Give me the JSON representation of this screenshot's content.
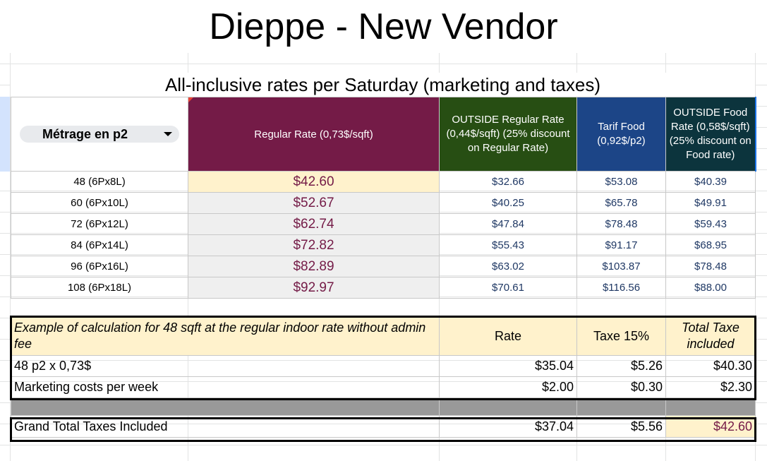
{
  "sheet": {
    "title": "Dieppe - New Vendor",
    "subtitle": "All-inclusive rates per Saturday (marketing and taxes)"
  },
  "rates_table": {
    "headers": {
      "metrage": "Métrage en p2",
      "regular": "Regular Rate (0,73$/sqft)",
      "outside_regular": "OUTSIDE Regular Rate (0,44$/sqft) (25% discount on Regular Rate)",
      "food": "Tarif Food (0,92$/p2)",
      "outside_food": "OUTSIDE Food Rate (0,58$/sqft) (25% discount on Food rate)"
    },
    "rows": [
      {
        "size": "48 (6Px8L)",
        "regular": "$42.60",
        "outside_regular": "$32.66",
        "food": "$53.08",
        "outside_food": "$40.39"
      },
      {
        "size": "60 (6Px10L)",
        "regular": "$52.67",
        "outside_regular": "$40.25",
        "food": "$65.78",
        "outside_food": "$49.91"
      },
      {
        "size": "72 (6Px12L)",
        "regular": "$62.74",
        "outside_regular": "$47.84",
        "food": "$78.48",
        "outside_food": "$59.43"
      },
      {
        "size": "84 (6Px14L)",
        "regular": "$72.82",
        "outside_regular": "$55.43",
        "food": "$91.17",
        "outside_food": "$68.95"
      },
      {
        "size": "96 (6Px16L)",
        "regular": "$82.89",
        "outside_regular": "$63.02",
        "food": "$103.87",
        "outside_food": "$78.48"
      },
      {
        "size": "108 (6Px18L)",
        "regular": "$92.97",
        "outside_regular": "$70.61",
        "food": "$116.56",
        "outside_food": "$88.00"
      }
    ]
  },
  "calc_table": {
    "headers": {
      "description": "Example of calculation for 48 sqft at the regular indoor rate without admin fee",
      "rate": "Rate",
      "tax": "Taxe 15%",
      "total": "Total Taxe included"
    },
    "rows": [
      {
        "label": "48 p2 x 0,73$",
        "rate": "$35.04",
        "tax": "$5.26",
        "total": "$40.30"
      },
      {
        "label": "Marketing costs per week",
        "rate": "$2.00",
        "tax": "$0.30",
        "total": "$2.30"
      }
    ],
    "grand_total": {
      "label": "Grand Total Taxes Included",
      "rate": "$37.04",
      "tax": "$5.56",
      "total": "$42.60"
    }
  },
  "colors": {
    "regular_header": "#741b47",
    "outside_header": "#274e13",
    "food_header": "#1c4587",
    "outside_food_header": "#0c343d",
    "highlight": "#fff2cc"
  }
}
